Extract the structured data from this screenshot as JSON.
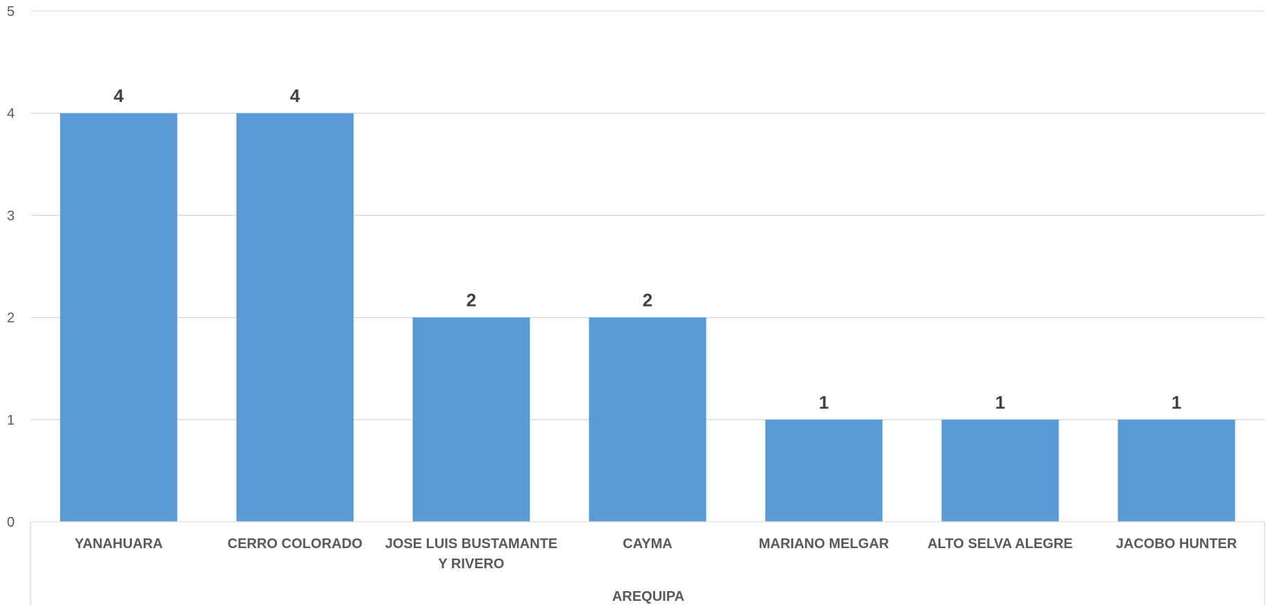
{
  "chart_data": {
    "type": "bar",
    "categories": [
      "YANAHUARA",
      "CERRO COLORADO",
      "JOSE LUIS BUSTAMANTE Y RIVERO",
      "CAYMA",
      "MARIANO MELGAR",
      "ALTO SELVA ALEGRE",
      "JACOBO HUNTER"
    ],
    "category_label_lines": [
      [
        "YANAHUARA"
      ],
      [
        "CERRO COLORADO"
      ],
      [
        "JOSE LUIS BUSTAMANTE",
        "Y RIVERO"
      ],
      [
        "CAYMA"
      ],
      [
        "MARIANO MELGAR"
      ],
      [
        "ALTO SELVA ALEGRE"
      ],
      [
        "JACOBO HUNTER"
      ]
    ],
    "values": [
      4,
      4,
      2,
      2,
      1,
      1,
      1
    ],
    "group_label": "AREQUIPA",
    "title": "",
    "xlabel": "",
    "ylabel": "",
    "ylim": [
      0,
      5
    ],
    "yticks": [
      "0",
      "1",
      "2",
      "3",
      "4",
      "5"
    ],
    "grid": true,
    "bar_color": "#5B9BD5",
    "data_labels": true
  }
}
